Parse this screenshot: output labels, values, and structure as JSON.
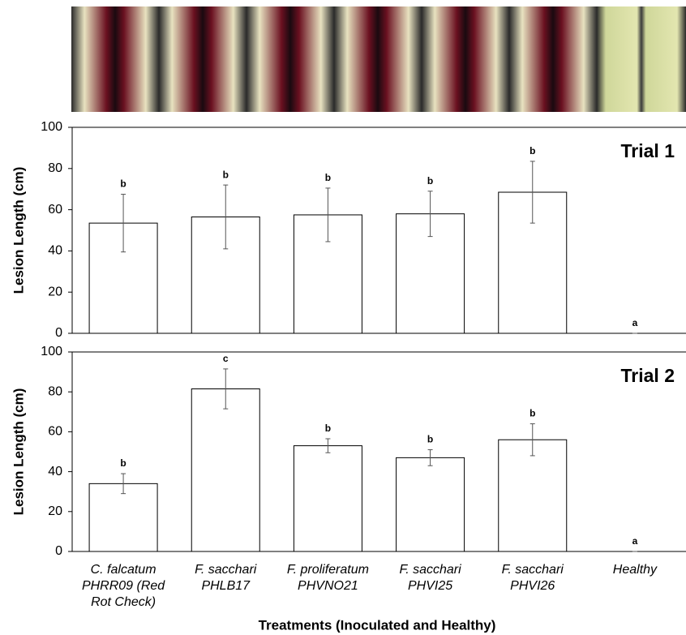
{
  "chart_data": [
    {
      "type": "bar",
      "annotation": "Trial 1",
      "y_label": "Lesion Length (cm)",
      "values": [
        53.5,
        56.5,
        57.5,
        58,
        68.5,
        0
      ],
      "errors": [
        14,
        15.5,
        13,
        11,
        15,
        0
      ],
      "letters": [
        "b",
        "b",
        "b",
        "b",
        "b",
        "a"
      ],
      "color": "#ffffff",
      "ylim": [
        0,
        100
      ],
      "yticks": [
        0,
        20,
        40,
        60,
        80,
        100
      ]
    },
    {
      "type": "bar",
      "annotation": "Trial 2",
      "y_label": "Lesion Length (cm)",
      "x_label": "Treatments (Inoculated and Healthy)",
      "categories": [
        "C. falcatum PHRR09 (Red Rot Check)",
        "F. sacchari PHLB17",
        "F. proliferatum PHVNO21",
        "F. sacchari PHVI25",
        "F. sacchari PHVI26",
        "Healthy"
      ],
      "values": [
        34,
        81.5,
        53,
        47,
        56,
        0
      ],
      "errors": [
        5,
        10,
        3.5,
        4,
        8,
        0
      ],
      "letters": [
        "b",
        "c",
        "b",
        "b",
        "b",
        "a"
      ],
      "color": "#ffffff",
      "ylim": [
        0,
        100
      ],
      "yticks": [
        0,
        20,
        40,
        60,
        80,
        100
      ]
    }
  ]
}
